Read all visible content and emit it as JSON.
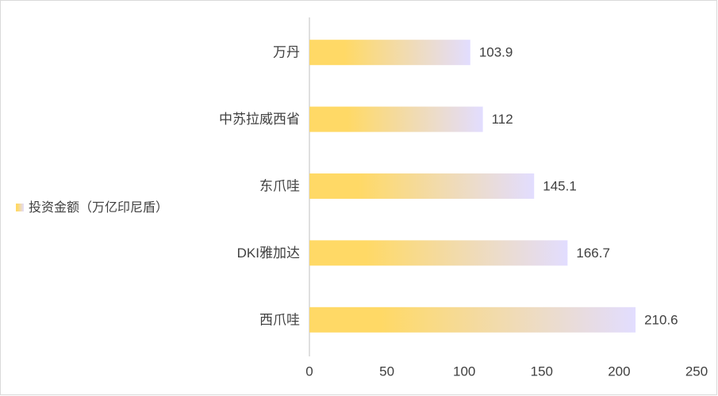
{
  "chart_data": {
    "type": "hbar",
    "categories": [
      "万丹",
      "中苏拉威西省",
      "东爪哇",
      "DKI雅加达",
      "西爪哇"
    ],
    "series": [
      {
        "name": "投资金额（万亿印尼盾）",
        "color": "#ffd966",
        "color_end": "#e2ddff",
        "values": [
          103.9,
          112,
          145.1,
          166.7,
          210.6
        ]
      }
    ],
    "xlim": [
      0,
      250
    ],
    "xticks": [
      0,
      50,
      100,
      150,
      200,
      250
    ],
    "legend": "left"
  }
}
